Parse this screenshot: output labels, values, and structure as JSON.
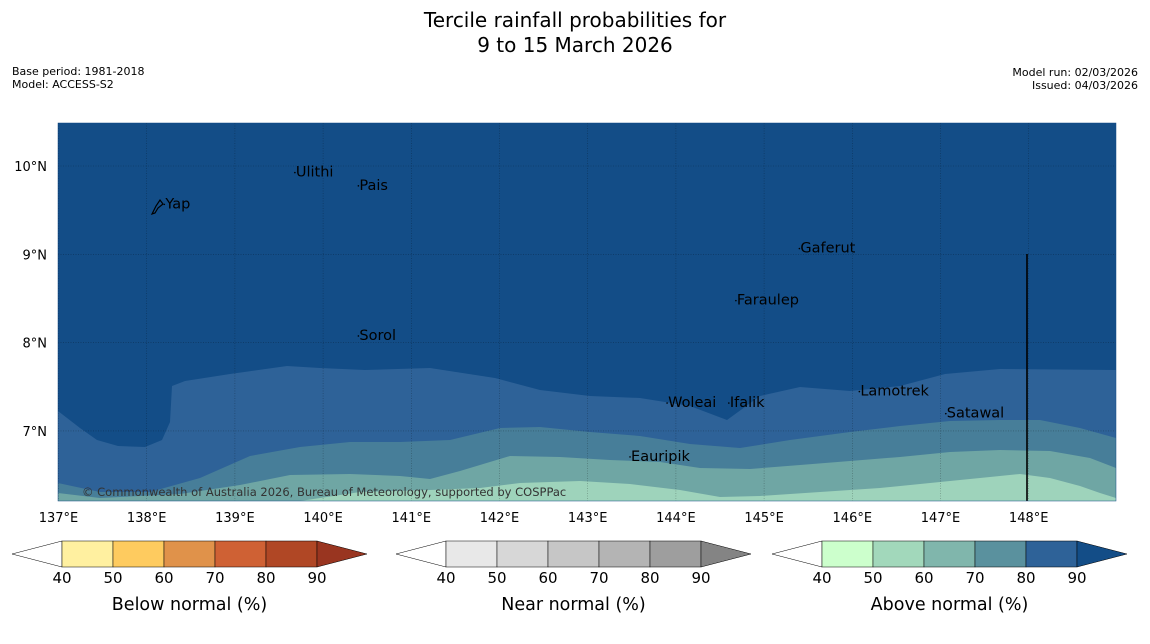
{
  "title_line1": "Tercile rainfall probabilities for",
  "title_line2": "9 to 15 March 2026",
  "base_period": "Base period: 1981-2018",
  "model": "Model: ACCESS-S2",
  "model_run": "Model run: 02/03/2026",
  "issued": "Issued: 04/03/2026",
  "map": {
    "lon_ticks": [
      "137°E",
      "138°E",
      "139°E",
      "140°E",
      "141°E",
      "142°E",
      "143°E",
      "144°E",
      "145°E",
      "146°E",
      "147°E",
      "148°E"
    ],
    "lat_ticks": [
      "10°N",
      "9°N",
      "8°N",
      "7°N"
    ],
    "places": [
      {
        "name": "Yap",
        "lon": 138.2,
        "lat": 9.52
      },
      {
        "name": "Ulithi",
        "lon": 139.68,
        "lat": 9.88
      },
      {
        "name": "Pais",
        "lon": 140.4,
        "lat": 9.73
      },
      {
        "name": "Gaferut",
        "lon": 145.4,
        "lat": 9.02
      },
      {
        "name": "Faraulep",
        "lon": 144.68,
        "lat": 8.43
      },
      {
        "name": "Sorol",
        "lon": 140.4,
        "lat": 8.03
      },
      {
        "name": "Lamotrek",
        "lon": 146.08,
        "lat": 7.4
      },
      {
        "name": "Woleai",
        "lon": 143.9,
        "lat": 7.27
      },
      {
        "name": "Ifalik",
        "lon": 144.6,
        "lat": 7.27
      },
      {
        "name": "Satawal",
        "lon": 147.06,
        "lat": 7.15
      },
      {
        "name": "Eauripik",
        "lon": 143.48,
        "lat": 6.66
      }
    ],
    "copyright": "© Commonwealth of Australia 2026, Bureau of Meteorology, supported by COSPPac",
    "colors": {
      "ocean_90": "#134d87",
      "band_80": "#2e6298",
      "band_70": "#477e99",
      "band_60": "#6fa6a4",
      "band_50": "#9ed3bb"
    }
  },
  "colorbars": [
    {
      "label": "Below normal (%)",
      "ticks": [
        "40",
        "50",
        "60",
        "70",
        "80",
        "90"
      ],
      "colors": [
        "#fff0a0",
        "#fecb5f",
        "#e0924a",
        "#cf6134",
        "#b04725",
        "#993520"
      ]
    },
    {
      "label": "Near normal (%)",
      "ticks": [
        "40",
        "50",
        "60",
        "70",
        "80",
        "90"
      ],
      "colors": [
        "#e8e8e8",
        "#d7d7d7",
        "#c6c6c6",
        "#b4b4b4",
        "#9e9e9e",
        "#848484"
      ]
    },
    {
      "label": "Above normal (%)",
      "ticks": [
        "40",
        "50",
        "60",
        "70",
        "80",
        "90"
      ],
      "colors": [
        "#ccffcc",
        "#a2d8bb",
        "#80b6ac",
        "#5a919e",
        "#2e6298",
        "#134d87"
      ]
    }
  ]
}
